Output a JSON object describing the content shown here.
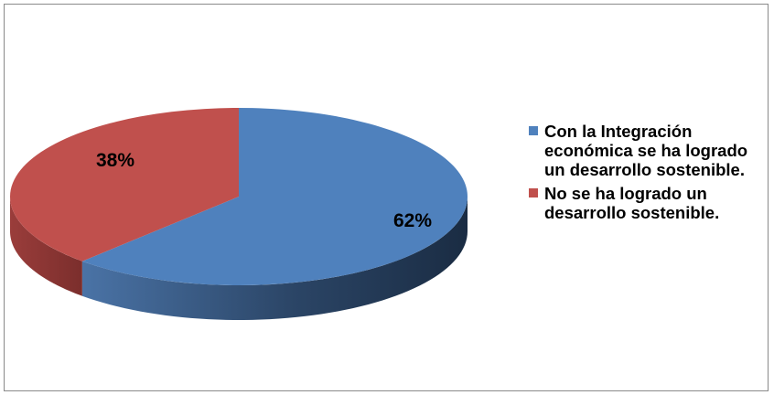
{
  "chart_data": {
    "type": "pie",
    "style": "3d",
    "categories": [
      "Con la Integración económica se ha logrado un desarrollo sostenible.",
      "No se ha logrado un desarrollo sostenible."
    ],
    "values": [
      62,
      38
    ],
    "data_labels": [
      "62%",
      "38%"
    ],
    "colors": [
      "#4f81bd",
      "#c0504d"
    ],
    "legend_position": "right",
    "title": ""
  }
}
